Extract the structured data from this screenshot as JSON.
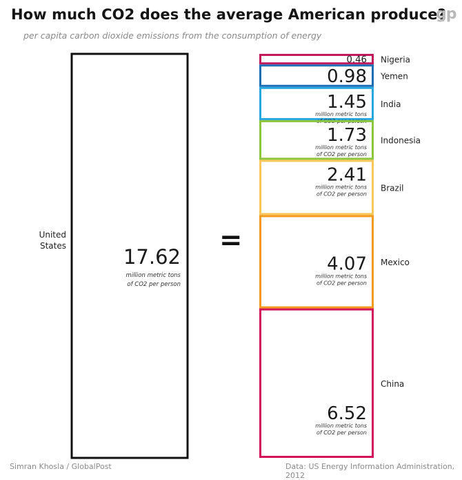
{
  "title": "How much CO2 does the average American produce?",
  "subtitle": "per capita carbon dioxide emissions from the consumption of energy",
  "logo_text": "gp",
  "equals_sign": "=",
  "footer": {
    "credit": "Simran Khosla / GlobalPost",
    "source": "Data: US Energy Information Administration, 2012"
  },
  "chart_data": {
    "type": "bar",
    "unit_label_line1": "million metric tons",
    "unit_label_line2": "of CO2 per person",
    "left": {
      "label_line1": "United",
      "label_line2": "States",
      "value": 17.62,
      "value_text": "17.62",
      "color": "#111111"
    },
    "right": [
      {
        "name": "Nigeria",
        "value": 0.46,
        "value_text": "0.46",
        "color": "#c2185b",
        "show_unit": false
      },
      {
        "name": "Yemen",
        "value": 0.98,
        "value_text": "0.98",
        "color": "#1f6db5",
        "show_unit": false
      },
      {
        "name": "India",
        "value": 1.45,
        "value_text": "1.45",
        "color": "#29a8e0",
        "show_unit": true
      },
      {
        "name": "Indonesia",
        "value": 1.73,
        "value_text": "1.73",
        "color": "#8cc63f",
        "show_unit": true
      },
      {
        "name": "Brazil",
        "value": 2.41,
        "value_text": "2.41",
        "color": "#fbc75a",
        "show_unit": true
      },
      {
        "name": "Mexico",
        "value": 4.07,
        "value_text": "4.07",
        "color": "#f49a1f",
        "show_unit": true
      },
      {
        "name": "China",
        "value": 6.52,
        "value_text": "6.52",
        "color": "#d4145a",
        "show_unit": true
      }
    ]
  }
}
